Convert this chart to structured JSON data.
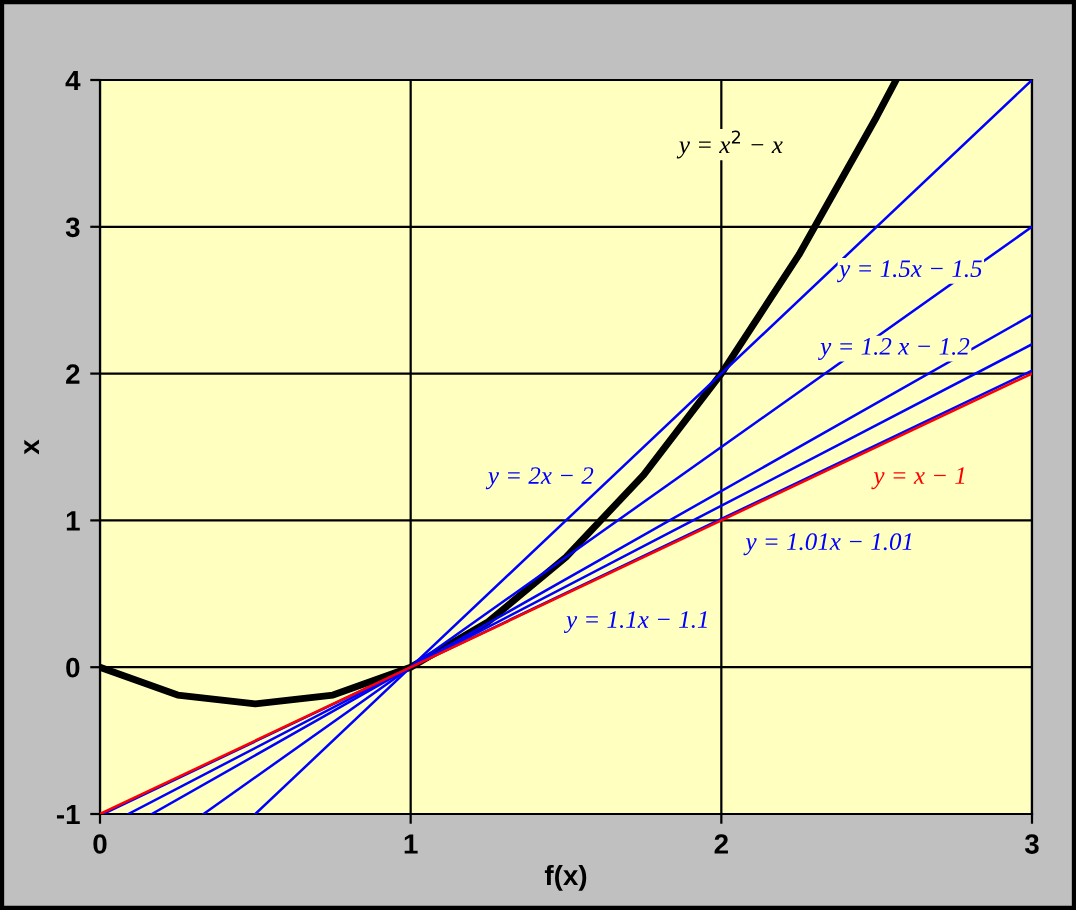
{
  "chart_data": {
    "type": "line",
    "xlabel": "f(x)",
    "ylabel": "x",
    "xlim": [
      0,
      3
    ],
    "ylim": [
      -1,
      4
    ],
    "xticks": [
      0,
      1,
      2,
      3
    ],
    "yticks": [
      -1,
      0,
      1,
      2,
      3,
      4
    ],
    "grid": true,
    "legend": false,
    "marker": "none",
    "line_style": "solid",
    "series": [
      {
        "color": "#000000",
        "x": [
          0,
          0.25,
          0.5,
          0.75,
          1,
          1.25,
          1.5,
          1.75,
          2,
          2.25,
          2.5,
          2.56
        ],
        "values": [
          0,
          -0.19,
          -0.25,
          -0.19,
          0,
          0.31,
          0.75,
          1.31,
          2,
          2.81,
          3.75,
          3.99
        ],
        "name": "y = x$^{2}$ − x"
      },
      {
        "name": "y = 2x − 2",
        "color": "#0000ff",
        "x": [
          0.5,
          3
        ],
        "values": [
          -1,
          4
        ]
      },
      {
        "name": "y = 1.5x − 1.5",
        "color": "#0000ff",
        "x": [
          0.3333,
          3
        ],
        "values": [
          -1,
          3
        ]
      },
      {
        "name": "y = 1.2 x − 1.2",
        "color": "#0000ff",
        "x": [
          0.1667,
          3
        ],
        "values": [
          -1,
          2.4
        ]
      },
      {
        "name": "y = 1.1x − 1.1",
        "color": "#0000ff",
        "x": [
          0.0909,
          3
        ],
        "values": [
          -1,
          2.2
        ]
      },
      {
        "name": "y = 1.01x − 1.01",
        "color": "#0000ff",
        "x": [
          0.0099,
          3
        ],
        "values": [
          -1,
          2.02
        ]
      },
      {
        "name": "y = x − 1",
        "color": "#ff0000",
        "x": [
          0,
          3
        ],
        "values": [
          -1,
          2
        ]
      }
    ]
  }
}
